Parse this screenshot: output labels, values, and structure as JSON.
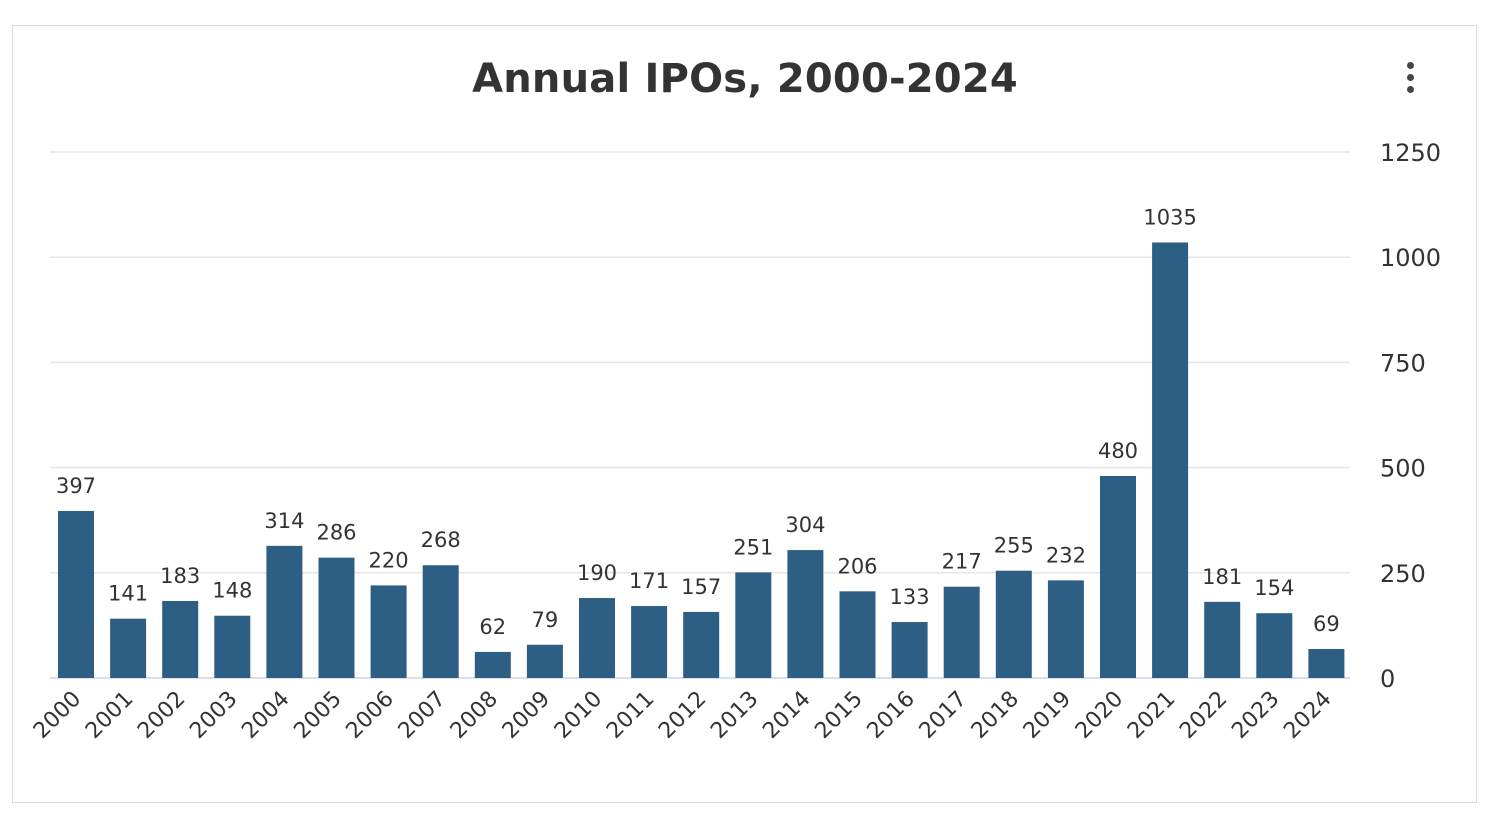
{
  "chart": {
    "title": "Annual IPOs, 2000-2024",
    "menu_icon": "vertical-ellipsis-icon"
  },
  "colors": {
    "bar": "#2d5f85",
    "grid": "#e6e6e6",
    "text": "#333333"
  },
  "chart_data": {
    "type": "bar",
    "title": "Annual IPOs, 2000-2024",
    "xlabel": "",
    "ylabel": "",
    "categories": [
      "2000",
      "2001",
      "2002",
      "2003",
      "2004",
      "2005",
      "2006",
      "2007",
      "2008",
      "2009",
      "2010",
      "2011",
      "2012",
      "2013",
      "2014",
      "2015",
      "2016",
      "2017",
      "2018",
      "2019",
      "2020",
      "2021",
      "2022",
      "2023",
      "2024"
    ],
    "values": [
      397,
      141,
      183,
      148,
      314,
      286,
      220,
      268,
      62,
      79,
      190,
      171,
      157,
      251,
      304,
      206,
      133,
      217,
      255,
      232,
      480,
      1035,
      181,
      154,
      69
    ],
    "ylim": [
      0,
      1250
    ],
    "yticks": [
      0,
      250,
      500,
      750,
      1000,
      1250
    ],
    "y_axis_position": "right",
    "grid": true,
    "legend": "none",
    "data_labels": true
  }
}
